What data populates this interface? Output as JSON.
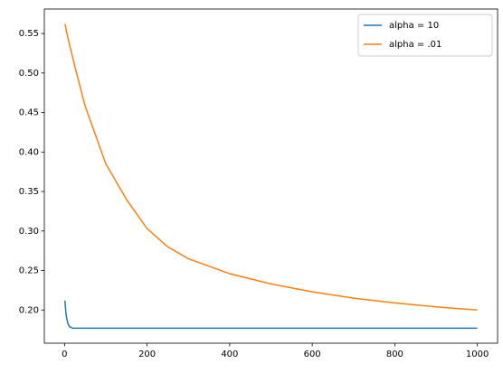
{
  "chart_data": {
    "type": "line",
    "x": [
      1,
      3,
      5,
      8,
      12,
      20,
      25,
      50,
      100,
      150,
      200,
      250,
      300,
      400,
      500,
      600,
      700,
      800,
      900,
      1000
    ],
    "series": [
      {
        "name": "alpha = 10",
        "color": "#1f77b4",
        "values": [
          0.212,
          0.198,
          0.19,
          0.183,
          0.179,
          0.177,
          0.177,
          0.177,
          0.177,
          0.177,
          0.177,
          0.177,
          0.177,
          0.177,
          0.177,
          0.177,
          0.177,
          0.177,
          0.177,
          0.177
        ]
      },
      {
        "name": "alpha = .01",
        "color": "#ff7f0e",
        "values": [
          0.562,
          0.557,
          0.552,
          0.545,
          0.536,
          0.519,
          0.508,
          0.458,
          0.385,
          0.34,
          0.303,
          0.28,
          0.265,
          0.246,
          0.233,
          0.223,
          0.215,
          0.209,
          0.204,
          0.2
        ]
      }
    ],
    "xlim": [
      -49,
      1049
    ],
    "xticks": [
      0,
      200,
      400,
      600,
      800,
      1000
    ],
    "ylim": [
      0.158,
      0.581
    ],
    "yticks": [
      {
        "value": 0.2,
        "label": "0.20"
      },
      {
        "value": 0.25,
        "label": "0.25"
      },
      {
        "value": 0.3,
        "label": "0.30"
      },
      {
        "value": 0.35,
        "label": "0.35"
      },
      {
        "value": 0.4,
        "label": "0.40"
      },
      {
        "value": 0.45,
        "label": "0.45"
      },
      {
        "value": 0.5,
        "label": "0.50"
      },
      {
        "value": 0.55,
        "label": "0.55"
      }
    ],
    "legend": "upper right"
  }
}
